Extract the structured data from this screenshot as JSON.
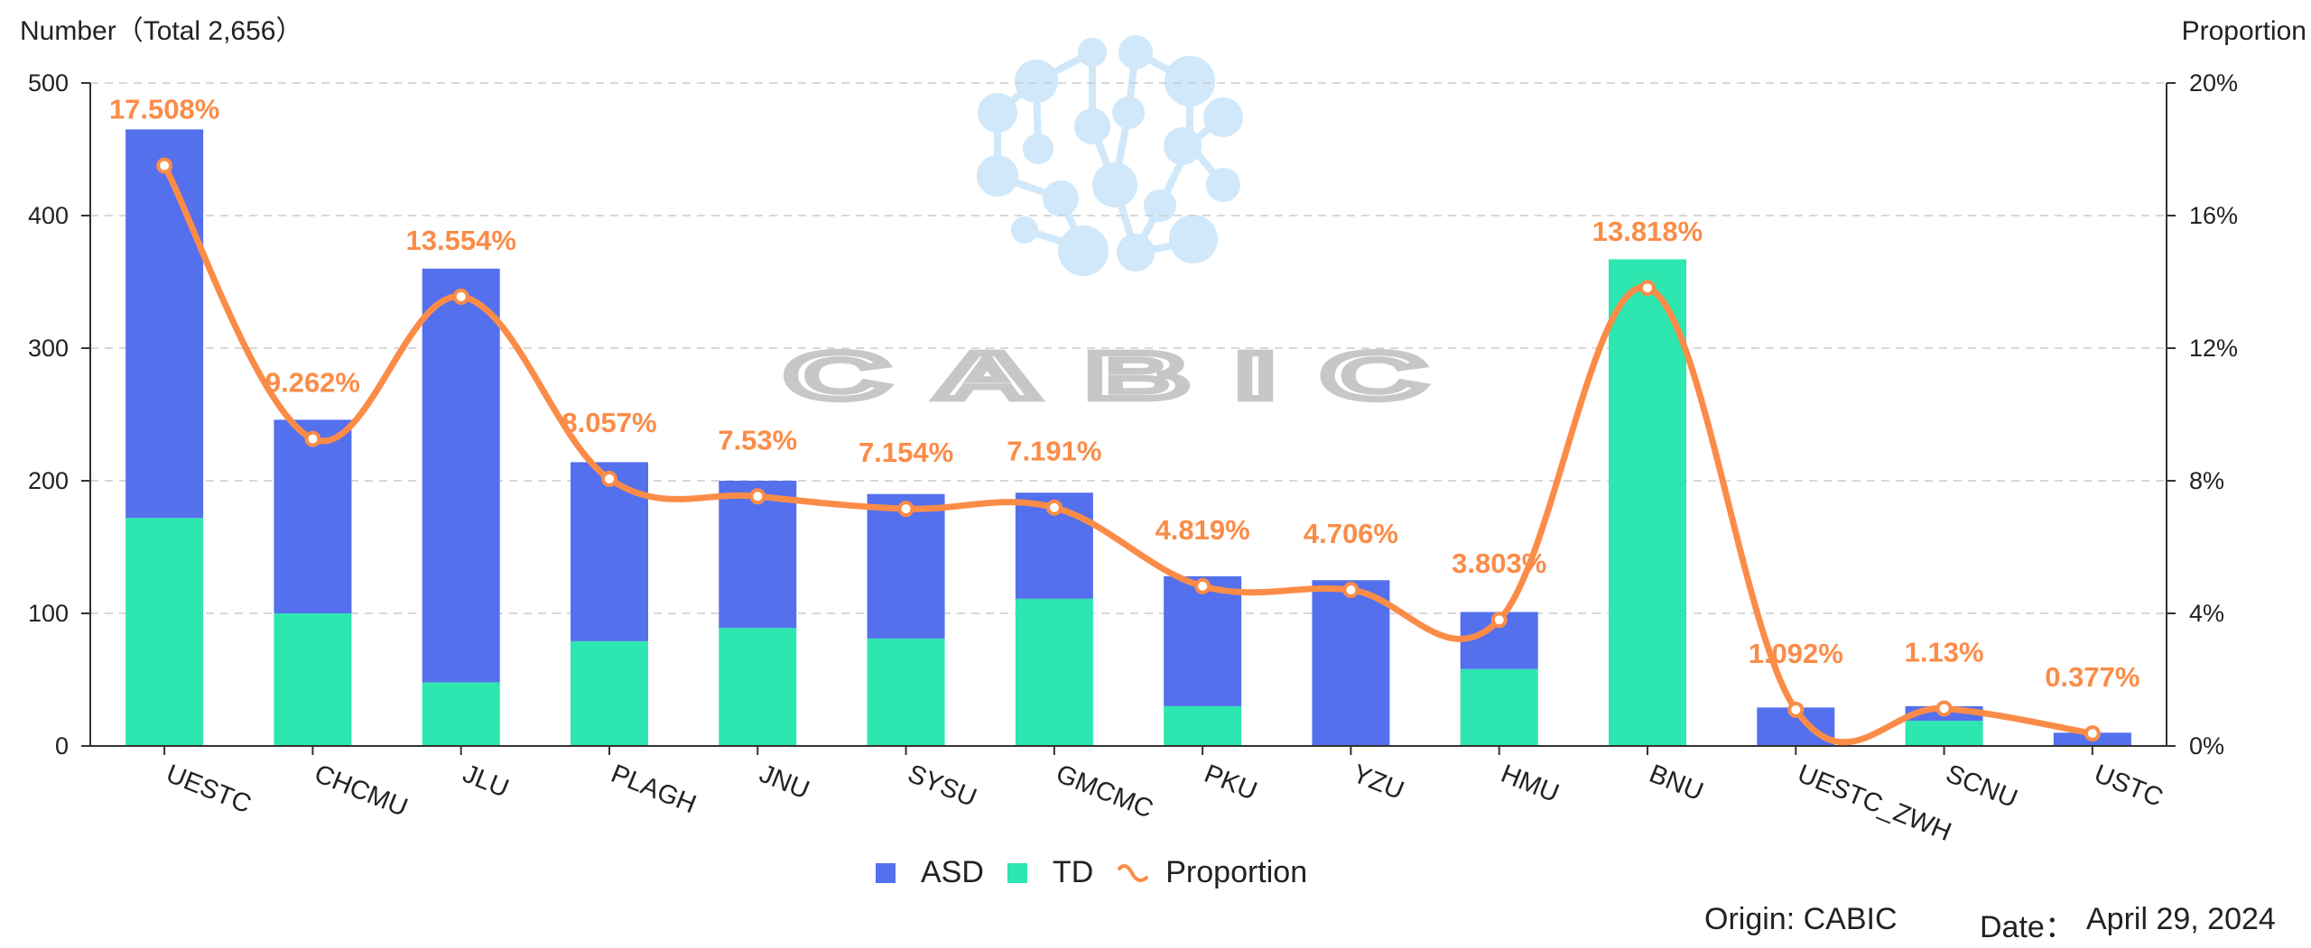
{
  "chart_data": {
    "type": "bar",
    "stacked": true,
    "left_axis_title": "Number（Total 2,656）",
    "right_axis_title": "Proportion",
    "categories": [
      "UESTC",
      "CHCMU",
      "JLU",
      "PLAGH",
      "JNU",
      "SYSU",
      "GMCMC",
      "PKU",
      "YZU",
      "HMU",
      "BNU",
      "UESTC_ZWH",
      "SCNU",
      "USTC"
    ],
    "series": [
      {
        "name": "TD",
        "color": "#2de6b0",
        "values": [
          172,
          100,
          48,
          79,
          89,
          81,
          111,
          30,
          0,
          58,
          367,
          0,
          19,
          0
        ]
      },
      {
        "name": "ASD",
        "color": "#5470ec",
        "values": [
          293,
          146,
          312,
          135,
          111,
          109,
          80,
          98,
          125,
          43,
          0,
          29,
          11,
          10
        ]
      }
    ],
    "line_series": {
      "name": "Proportion",
      "color": "#fb8c48",
      "values": [
        17.508,
        9.262,
        13.554,
        8.057,
        7.53,
        7.154,
        7.191,
        4.819,
        4.706,
        3.803,
        13.818,
        1.092,
        1.13,
        0.377
      ],
      "labels": [
        "17.508%",
        "9.262%",
        "13.554%",
        "8.057%",
        "7.53%",
        "7.154%",
        "7.191%",
        "4.819%",
        "4.706%",
        "3.803%",
        "13.818%",
        "1.092%",
        "1.13%",
        "0.377%"
      ]
    },
    "left_ylim": [
      0,
      500
    ],
    "left_ticks": [
      "0",
      "100",
      "200",
      "300",
      "400",
      "500"
    ],
    "right_ylim": [
      0,
      20
    ],
    "right_ticks": [
      "0%",
      "4%",
      "8%",
      "12%",
      "16%",
      "20%"
    ],
    "legend": [
      "ASD",
      "TD",
      "Proportion"
    ],
    "grid": true
  },
  "watermark": {
    "text": "CABIC"
  },
  "footer": {
    "origin": "Origin: CABIC",
    "date_label": "Date：",
    "date": "April 29, 2024"
  },
  "colors": {
    "asd": "#5470ec",
    "td": "#2de6b0",
    "line": "#fb8c48"
  }
}
